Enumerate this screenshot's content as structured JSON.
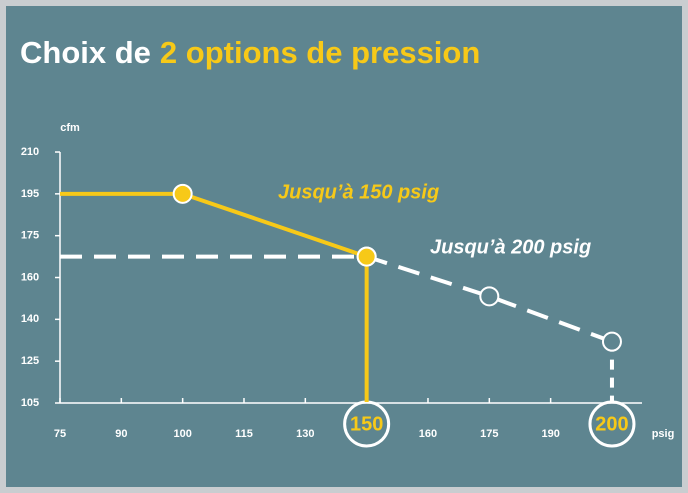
{
  "chart_data": {
    "type": "line",
    "title": "Choix de",
    "title_highlight": "2 options de pression",
    "y_label": "cfm",
    "x_label": "psig",
    "xticks": [
      75,
      90,
      100,
      115,
      130,
      150,
      160,
      175,
      190,
      200
    ],
    "circled_xticks": [
      150,
      200
    ],
    "xlim": [
      75,
      200
    ],
    "yticks": [
      105,
      125,
      140,
      160,
      175,
      195,
      210
    ],
    "ylim": [
      105,
      210
    ],
    "series": [
      {
        "name": "Jusqu’à 150 psig",
        "color": "#f7c918",
        "style": "solid",
        "x": [
          75,
          100,
          150
        ],
        "values": [
          195,
          195,
          167.5
        ]
      },
      {
        "name": "Jusqu’à 200 psig",
        "color": "#ffffff",
        "style": "dashed",
        "x": [
          75,
          150,
          175,
          200
        ],
        "values": [
          167.5,
          167.5,
          151,
          132
        ]
      }
    ]
  }
}
